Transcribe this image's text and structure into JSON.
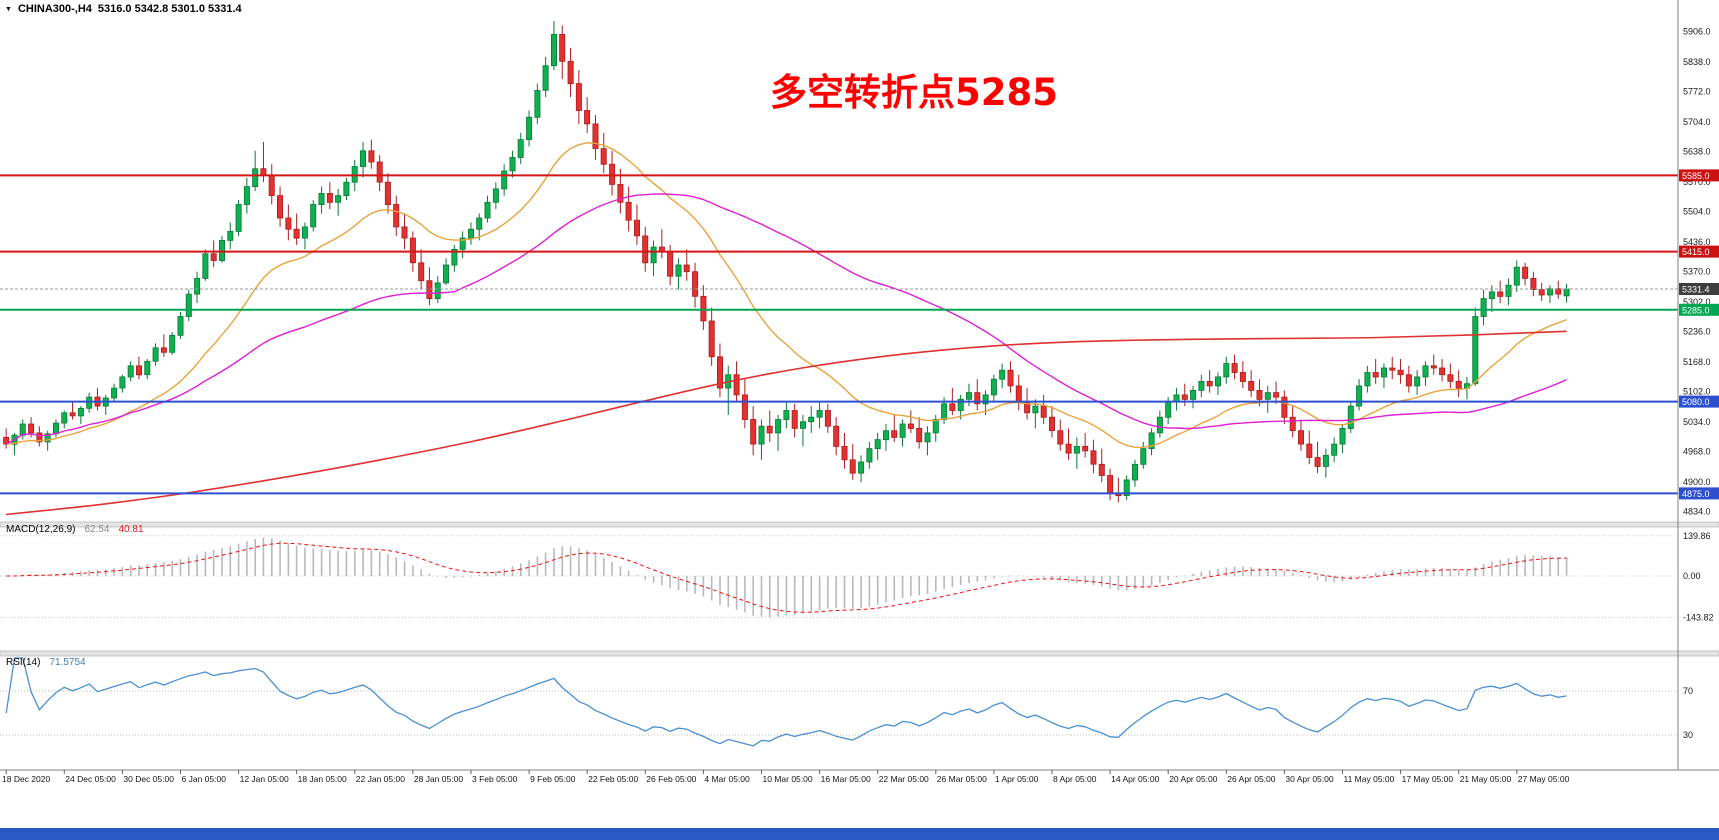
{
  "window": {
    "dropdown_icon": "▼",
    "symbol_label": "CHINA300-,H4",
    "ohlc_values": "5316.0 5342.8 5301.0 5331.4"
  },
  "annotation": {
    "text": "多空转折点5285",
    "color": "#ff0000"
  },
  "bottom_bar_color": "#2b59c3",
  "chart_data": {
    "type": "candlestick",
    "title": "CHINA300-,H4",
    "timeframe": "H4",
    "current_bar": {
      "open": 5316.0,
      "high": 5342.8,
      "low": 5301.0,
      "close": 5331.4
    },
    "price_axis": {
      "labels": [
        5906.0,
        5838.0,
        5772.0,
        5704.0,
        5638.0,
        5570.0,
        5504.0,
        5436.0,
        5370.0,
        5302.0,
        5236.0,
        5168.0,
        5102.0,
        5034.0,
        4968.0,
        4900.0,
        4834.0
      ],
      "range": [
        4820,
        5950
      ]
    },
    "time_axis": {
      "labels": [
        "18 Dec 2020",
        "24 Dec 05:00",
        "30 Dec 05:00",
        "6 Jan 05:00",
        "12 Jan 05:00",
        "18 Jan 05:00",
        "22 Jan 05:00",
        "28 Jan 05:00",
        "3 Feb 05:00",
        "9 Feb 05:00",
        "22 Feb 05:00",
        "26 Feb 05:00",
        "4 Mar 05:00",
        "10 Mar 05:00",
        "16 Mar 05:00",
        "22 Mar 05:00",
        "26 Mar 05:00",
        "1 Apr 05:00",
        "8 Apr 05:00",
        "14 Apr 05:00",
        "20 Apr 05:00",
        "26 Apr 05:00",
        "30 Apr 05:00",
        "11 May 05:00",
        "17 May 05:00",
        "21 May 05:00",
        "27 May 05:00"
      ]
    },
    "candles_ohlc": [
      [
        5000,
        5020,
        4975,
        4985
      ],
      [
        4985,
        5010,
        4960,
        5005
      ],
      [
        5005,
        5040,
        4995,
        5030
      ],
      [
        5030,
        5045,
        5000,
        5010
      ],
      [
        5010,
        5025,
        4980,
        4990
      ],
      [
        4990,
        5015,
        4970,
        5008
      ],
      [
        5008,
        5040,
        5000,
        5032
      ],
      [
        5032,
        5060,
        5020,
        5055
      ],
      [
        5055,
        5080,
        5040,
        5048
      ],
      [
        5048,
        5070,
        5030,
        5065
      ],
      [
        5065,
        5100,
        5055,
        5090
      ],
      [
        5090,
        5110,
        5060,
        5070
      ],
      [
        5070,
        5095,
        5050,
        5088
      ],
      [
        5088,
        5120,
        5080,
        5110
      ],
      [
        5110,
        5140,
        5100,
        5135
      ],
      [
        5135,
        5170,
        5125,
        5160
      ],
      [
        5160,
        5180,
        5130,
        5140
      ],
      [
        5140,
        5175,
        5130,
        5170
      ],
      [
        5170,
        5210,
        5160,
        5200
      ],
      [
        5200,
        5230,
        5180,
        5190
      ],
      [
        5190,
        5235,
        5185,
        5228
      ],
      [
        5228,
        5280,
        5220,
        5270
      ],
      [
        5270,
        5330,
        5260,
        5320
      ],
      [
        5320,
        5370,
        5300,
        5355
      ],
      [
        5355,
        5420,
        5350,
        5410
      ],
      [
        5410,
        5440,
        5380,
        5395
      ],
      [
        5395,
        5450,
        5390,
        5440
      ],
      [
        5440,
        5480,
        5420,
        5460
      ],
      [
        5460,
        5530,
        5450,
        5520
      ],
      [
        5520,
        5580,
        5500,
        5560
      ],
      [
        5560,
        5640,
        5550,
        5600
      ],
      [
        5600,
        5660,
        5570,
        5585
      ],
      [
        5585,
        5610,
        5520,
        5540
      ],
      [
        5540,
        5560,
        5470,
        5490
      ],
      [
        5490,
        5520,
        5440,
        5465
      ],
      [
        5465,
        5500,
        5430,
        5445
      ],
      [
        5445,
        5480,
        5420,
        5470
      ],
      [
        5470,
        5530,
        5460,
        5520
      ],
      [
        5520,
        5560,
        5500,
        5545
      ],
      [
        5545,
        5570,
        5510,
        5525
      ],
      [
        5525,
        5555,
        5495,
        5540
      ],
      [
        5540,
        5580,
        5530,
        5570
      ],
      [
        5570,
        5620,
        5550,
        5605
      ],
      [
        5605,
        5660,
        5580,
        5640
      ],
      [
        5640,
        5665,
        5600,
        5615
      ],
      [
        5615,
        5630,
        5550,
        5570
      ],
      [
        5570,
        5590,
        5500,
        5520
      ],
      [
        5520,
        5540,
        5450,
        5470
      ],
      [
        5470,
        5500,
        5420,
        5445
      ],
      [
        5445,
        5460,
        5370,
        5390
      ],
      [
        5390,
        5420,
        5330,
        5350
      ],
      [
        5350,
        5380,
        5295,
        5310
      ],
      [
        5310,
        5360,
        5300,
        5345
      ],
      [
        5345,
        5400,
        5340,
        5385
      ],
      [
        5385,
        5430,
        5370,
        5420
      ],
      [
        5420,
        5460,
        5400,
        5445
      ],
      [
        5445,
        5480,
        5430,
        5465
      ],
      [
        5465,
        5500,
        5440,
        5490
      ],
      [
        5490,
        5540,
        5480,
        5525
      ],
      [
        5525,
        5570,
        5510,
        5555
      ],
      [
        5555,
        5610,
        5540,
        5595
      ],
      [
        5595,
        5640,
        5580,
        5625
      ],
      [
        5625,
        5680,
        5610,
        5665
      ],
      [
        5665,
        5730,
        5650,
        5715
      ],
      [
        5715,
        5790,
        5700,
        5775
      ],
      [
        5775,
        5850,
        5760,
        5830
      ],
      [
        5830,
        5930,
        5820,
        5900
      ],
      [
        5900,
        5920,
        5800,
        5840
      ],
      [
        5840,
        5870,
        5760,
        5790
      ],
      [
        5790,
        5820,
        5700,
        5730
      ],
      [
        5730,
        5760,
        5680,
        5700
      ],
      [
        5700,
        5720,
        5620,
        5645
      ],
      [
        5645,
        5680,
        5590,
        5610
      ],
      [
        5610,
        5640,
        5540,
        5565
      ],
      [
        5565,
        5600,
        5500,
        5525
      ],
      [
        5525,
        5560,
        5460,
        5485
      ],
      [
        5485,
        5520,
        5430,
        5450
      ],
      [
        5450,
        5470,
        5370,
        5390
      ],
      [
        5390,
        5440,
        5360,
        5425
      ],
      [
        5425,
        5465,
        5400,
        5415
      ],
      [
        5415,
        5430,
        5340,
        5360
      ],
      [
        5360,
        5400,
        5330,
        5385
      ],
      [
        5385,
        5420,
        5350,
        5370
      ],
      [
        5370,
        5390,
        5290,
        5315
      ],
      [
        5315,
        5340,
        5240,
        5260
      ],
      [
        5260,
        5290,
        5160,
        5180
      ],
      [
        5180,
        5210,
        5090,
        5110
      ],
      [
        5110,
        5160,
        5050,
        5140
      ],
      [
        5140,
        5170,
        5080,
        5095
      ],
      [
        5095,
        5130,
        5020,
        5040
      ],
      [
        5040,
        5070,
        4960,
        4985
      ],
      [
        4985,
        5040,
        4950,
        5025
      ],
      [
        5025,
        5060,
        4990,
        5010
      ],
      [
        5010,
        5050,
        4970,
        5040
      ],
      [
        5040,
        5080,
        5020,
        5060
      ],
      [
        5060,
        5075,
        5000,
        5020
      ],
      [
        5020,
        5050,
        4980,
        5035
      ],
      [
        5035,
        5070,
        5010,
        5045
      ],
      [
        5045,
        5080,
        5020,
        5060
      ],
      [
        5060,
        5075,
        5010,
        5025
      ],
      [
        5025,
        5045,
        4960,
        4980
      ],
      [
        4980,
        5010,
        4930,
        4950
      ],
      [
        4950,
        4985,
        4905,
        4920
      ],
      [
        4920,
        4960,
        4900,
        4945
      ],
      [
        4945,
        4990,
        4930,
        4975
      ],
      [
        4975,
        5010,
        4950,
        4995
      ],
      [
        4995,
        5030,
        4970,
        5015
      ],
      [
        5015,
        5050,
        4990,
        5000
      ],
      [
        5000,
        5040,
        4980,
        5030
      ],
      [
        5030,
        5060,
        5010,
        5020
      ],
      [
        5020,
        5045,
        4975,
        4990
      ],
      [
        4990,
        5025,
        4960,
        5010
      ],
      [
        5010,
        5050,
        4990,
        5040
      ],
      [
        5040,
        5090,
        5030,
        5075
      ],
      [
        5075,
        5110,
        5050,
        5060
      ],
      [
        5060,
        5095,
        5040,
        5085
      ],
      [
        5085,
        5120,
        5070,
        5100
      ],
      [
        5100,
        5130,
        5060,
        5075
      ],
      [
        5075,
        5105,
        5050,
        5095
      ],
      [
        5095,
        5140,
        5080,
        5130
      ],
      [
        5130,
        5165,
        5110,
        5150
      ],
      [
        5150,
        5170,
        5100,
        5115
      ],
      [
        5115,
        5140,
        5060,
        5080
      ],
      [
        5080,
        5110,
        5040,
        5055
      ],
      [
        5055,
        5085,
        5020,
        5070
      ],
      [
        5070,
        5095,
        5030,
        5045
      ],
      [
        5045,
        5070,
        5000,
        5015
      ],
      [
        5015,
        5040,
        4970,
        4985
      ],
      [
        4985,
        5020,
        4950,
        4965
      ],
      [
        4965,
        5000,
        4930,
        4980
      ],
      [
        4980,
        5010,
        4955,
        4970
      ],
      [
        4970,
        4995,
        4920,
        4940
      ],
      [
        4940,
        4975,
        4900,
        4915
      ],
      [
        4915,
        4930,
        4860,
        4875
      ],
      [
        4875,
        4910,
        4855,
        4870
      ],
      [
        4870,
        4915,
        4860,
        4905
      ],
      [
        4905,
        4950,
        4890,
        4940
      ],
      [
        4940,
        4990,
        4930,
        4975
      ],
      [
        4975,
        5020,
        4960,
        5010
      ],
      [
        5010,
        5060,
        5000,
        5045
      ],
      [
        5045,
        5090,
        5030,
        5080
      ],
      [
        5080,
        5110,
        5060,
        5095
      ],
      [
        5095,
        5120,
        5070,
        5085
      ],
      [
        5085,
        5115,
        5065,
        5105
      ],
      [
        5105,
        5140,
        5090,
        5125
      ],
      [
        5125,
        5150,
        5100,
        5115
      ],
      [
        5115,
        5145,
        5095,
        5135
      ],
      [
        5135,
        5180,
        5120,
        5165
      ],
      [
        5165,
        5185,
        5130,
        5145
      ],
      [
        5145,
        5170,
        5110,
        5125
      ],
      [
        5125,
        5150,
        5090,
        5105
      ],
      [
        5105,
        5130,
        5070,
        5085
      ],
      [
        5085,
        5115,
        5055,
        5100
      ],
      [
        5100,
        5125,
        5075,
        5090
      ],
      [
        5090,
        5105,
        5030,
        5045
      ],
      [
        5045,
        5070,
        5000,
        5015
      ],
      [
        5015,
        5040,
        4970,
        4985
      ],
      [
        4985,
        5015,
        4940,
        4955
      ],
      [
        4955,
        4990,
        4920,
        4935
      ],
      [
        4935,
        4975,
        4910,
        4960
      ],
      [
        4960,
        5000,
        4945,
        4985
      ],
      [
        4985,
        5030,
        4965,
        5020
      ],
      [
        5020,
        5080,
        5010,
        5070
      ],
      [
        5070,
        5130,
        5060,
        5115
      ],
      [
        5115,
        5160,
        5100,
        5145
      ],
      [
        5145,
        5175,
        5120,
        5135
      ],
      [
        5135,
        5165,
        5110,
        5155
      ],
      [
        5155,
        5180,
        5130,
        5150
      ],
      [
        5150,
        5175,
        5120,
        5140
      ],
      [
        5140,
        5160,
        5100,
        5115
      ],
      [
        5115,
        5150,
        5095,
        5135
      ],
      [
        5135,
        5170,
        5115,
        5160
      ],
      [
        5160,
        5185,
        5140,
        5155
      ],
      [
        5155,
        5175,
        5125,
        5140
      ],
      [
        5140,
        5165,
        5110,
        5125
      ],
      [
        5125,
        5150,
        5090,
        5110
      ],
      [
        5110,
        5135,
        5085,
        5120
      ],
      [
        5120,
        5290,
        5115,
        5270
      ],
      [
        5270,
        5330,
        5250,
        5310
      ],
      [
        5310,
        5340,
        5280,
        5325
      ],
      [
        5325,
        5350,
        5300,
        5315
      ],
      [
        5315,
        5355,
        5295,
        5340
      ],
      [
        5340,
        5395,
        5325,
        5380
      ],
      [
        5380,
        5390,
        5340,
        5355
      ],
      [
        5355,
        5370,
        5315,
        5330
      ],
      [
        5330,
        5345,
        5305,
        5318
      ],
      [
        5318,
        5340,
        5300,
        5332
      ],
      [
        5332,
        5350,
        5310,
        5320
      ],
      [
        5316,
        5342.8,
        5301,
        5331.4
      ]
    ],
    "horizontal_lines": [
      {
        "price": 5585.0,
        "label": "5585.0",
        "color": "#d51515",
        "box": "#cc1111"
      },
      {
        "price": 5415.0,
        "label": "5415.0",
        "color": "#d51515",
        "box": "#cc1111"
      },
      {
        "price": 5285.0,
        "label": "5285.0",
        "color": "#00a651",
        "box": "#00a651"
      },
      {
        "price": 5080.0,
        "label": "5080.0",
        "color": "#2c4fd0",
        "box": "#2c4fd0"
      },
      {
        "price": 4875.0,
        "label": "4875.0",
        "color": "#2c4fd0",
        "box": "#2c4fd0"
      }
    ],
    "current_price_line": {
      "price": 5331.4,
      "label": "5331.4",
      "line_color": "#9a9a9a",
      "box_color": "#3d3d3d"
    },
    "moving_averages": [
      {
        "name": "ma-fast-line",
        "source": "computed",
        "type": "ema",
        "period": 20,
        "color": "#e8a33d",
        "width": 1.4
      },
      {
        "name": "ma-medium-line",
        "source": "computed",
        "type": "sma",
        "period": 55,
        "color": "#e01fd0",
        "width": 1.4
      },
      {
        "name": "ma-slow-line",
        "source": "anchors",
        "color": "#e03030",
        "width": 1.6,
        "anchors": [
          [
            0,
            4828
          ],
          [
            0.06,
            4850
          ],
          [
            0.12,
            4878
          ],
          [
            0.18,
            4912
          ],
          [
            0.24,
            4950
          ],
          [
            0.3,
            4992
          ],
          [
            0.36,
            5040
          ],
          [
            0.41,
            5082
          ],
          [
            0.46,
            5122
          ],
          [
            0.51,
            5155
          ],
          [
            0.56,
            5180
          ],
          [
            0.61,
            5198
          ],
          [
            0.66,
            5210
          ],
          [
            0.71,
            5216
          ],
          [
            0.76,
            5219
          ],
          [
            0.82,
            5221
          ],
          [
            0.88,
            5223
          ],
          [
            0.94,
            5229
          ],
          [
            1,
            5237
          ]
        ]
      }
    ],
    "macd": {
      "label": "MACD(12,26,9)",
      "value_main": "62.54",
      "value_signal": "40.81",
      "value_main_color": "#8a8a8a",
      "value_signal_color": "#d22020",
      "fast": 12,
      "slow": 26,
      "signal": 9,
      "axis_labels": [
        139.86,
        0,
        -143.82
      ],
      "range": [
        -250,
        160
      ],
      "histogram_color": "#b9b9b9",
      "signal_color": "#ee1111"
    },
    "rsi": {
      "label": "RSI(14)",
      "value": "71.5754",
      "value_color": "#3f7fbf",
      "period": 14,
      "levels": [
        70,
        30
      ],
      "range": [
        0,
        100
      ],
      "line_color": "#4a8fd2"
    },
    "colors": {
      "bull": "#0fb050",
      "bull_stroke": "#087a36",
      "bear": "#e33030",
      "bear_stroke": "#aa1d1d",
      "background": "#ffffff",
      "axis_text": "#1a1a1a"
    }
  }
}
